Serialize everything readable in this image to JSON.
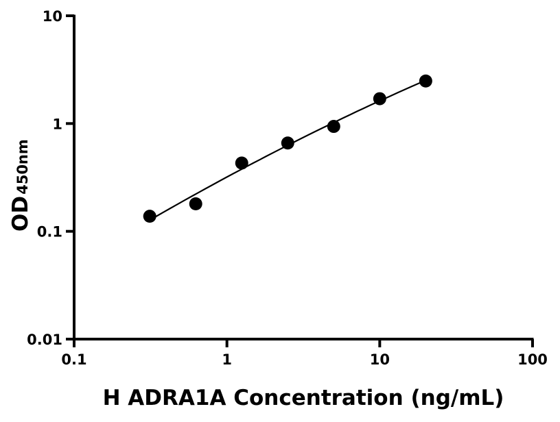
{
  "chart_data": {
    "type": "scatter",
    "title": "",
    "xlabel": "H ADRA1A Concentration (ng/mL)",
    "ylabel": "OD",
    "ylabel_subscript": "450nm",
    "xscale": "log",
    "yscale": "log",
    "xlim": [
      0.1,
      100
    ],
    "ylim": [
      0.01,
      10
    ],
    "xticks": [
      "0.1",
      "1",
      "10",
      "100"
    ],
    "yticks": [
      "0.01",
      "0.1",
      "1",
      "10"
    ],
    "grid": false,
    "legend": "none",
    "fit_line": true,
    "marker_color": "#000000",
    "series": [
      {
        "x": [
          0.3125,
          0.625,
          1.25,
          2.5,
          5,
          10,
          20
        ],
        "y": [
          0.138,
          0.18,
          0.43,
          0.66,
          0.94,
          1.7,
          2.48
        ]
      }
    ]
  }
}
